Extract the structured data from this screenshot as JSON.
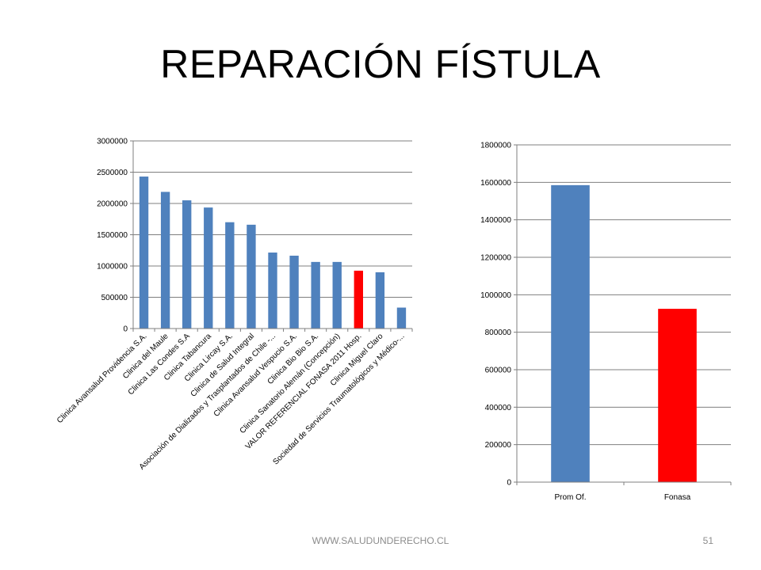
{
  "slide": {
    "title": "REPARACIÓN FÍSTULA",
    "footer_url": "WWW.SALUDUNDERECHO.CL",
    "page_number": "51"
  },
  "colors": {
    "bar_default": "#4f81bd",
    "bar_highlight": "#ff0000",
    "grid": "#7f7f7f",
    "text": "#000000"
  },
  "chart_data": [
    {
      "type": "bar",
      "title": "",
      "xlabel": "",
      "ylabel": "",
      "ylim": [
        0,
        3000000
      ],
      "yticks": [
        0,
        500000,
        1000000,
        1500000,
        2000000,
        2500000,
        3000000
      ],
      "grid": true,
      "legend": "none",
      "categories": [
        "Clinica Avansalud Providencia S.A.",
        "Clinica del Maule",
        "Clinica Las Condes S.A",
        "Clinica Tabancura",
        "Clinica Lircay S.A.",
        "Clinica de Salud Integral",
        "Asociación de Dializados y Trasplantados de Chile -...",
        "Clinica Avansalud Vespucio S.A.",
        "Clinica Bio Bio S.A.",
        "Clinica Sanatorio Alemán (Concepción)",
        "VALOR REFERENCIAL FONASA 2011 Hosp.",
        "Clinica Miguel Claro",
        "Sociedad de Servicios Traumatológicos y Médico-..."
      ],
      "values": [
        2430000,
        2185000,
        2050000,
        1935000,
        1700000,
        1660000,
        1215000,
        1165000,
        1065000,
        1065000,
        925000,
        900000,
        335000
      ],
      "highlight_index": 10
    },
    {
      "type": "bar",
      "title": "",
      "xlabel": "",
      "ylabel": "",
      "ylim": [
        0,
        1800000
      ],
      "yticks": [
        0,
        200000,
        400000,
        600000,
        800000,
        1000000,
        1200000,
        1400000,
        1600000,
        1800000
      ],
      "grid": true,
      "legend": "none",
      "categories": [
        "Prom Of.",
        "Fonasa"
      ],
      "values": [
        1585000,
        925000
      ],
      "highlight_index": 1
    }
  ]
}
